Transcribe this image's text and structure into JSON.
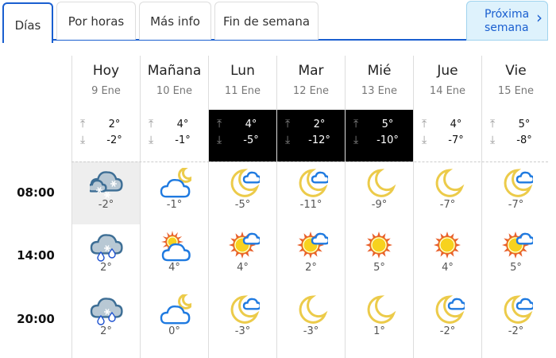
{
  "tabs": [
    {
      "label": "Días",
      "active": true
    },
    {
      "label": "Por horas"
    },
    {
      "label": "Más info"
    },
    {
      "label": "Fin de semana"
    }
  ],
  "next_week": {
    "line1": "Próxima",
    "line2": "semana",
    "icon": "chevron-right-icon"
  },
  "colors": {
    "accent": "#1a5fd0",
    "highlight": "#000000",
    "sun": "#f7d21e",
    "moon": "#eccb4a",
    "cloud": "#1f7ae0"
  },
  "times": [
    "08:00",
    "14:00",
    "20:00"
  ],
  "days": [
    {
      "name": "Hoy",
      "date": "9 Ene",
      "max": "2°",
      "min": "-2°",
      "dark": false,
      "hours": [
        {
          "icon": "snow",
          "t": "-2°",
          "selected": true
        },
        {
          "icon": "sleet",
          "t": "2°"
        },
        {
          "icon": "sleet",
          "t": "2°"
        }
      ]
    },
    {
      "name": "Mañana",
      "date": "10 Ene",
      "max": "4°",
      "min": "-1°",
      "dark": false,
      "hours": [
        {
          "icon": "cloud-moon",
          "t": "-1°"
        },
        {
          "icon": "cloud-sun",
          "t": "4°"
        },
        {
          "icon": "cloud-moon",
          "t": "0°"
        }
      ]
    },
    {
      "name": "Lun",
      "date": "11 Ene",
      "max": "4°",
      "min": "-5°",
      "dark": true,
      "hours": [
        {
          "icon": "moon-cloud",
          "t": "-5°"
        },
        {
          "icon": "sun-cloud",
          "t": "4°"
        },
        {
          "icon": "moon-cloud",
          "t": "-3°"
        }
      ]
    },
    {
      "name": "Mar",
      "date": "12 Ene",
      "max": "2°",
      "min": "-12°",
      "dark": true,
      "hours": [
        {
          "icon": "moon-cloud",
          "t": "-11°"
        },
        {
          "icon": "sun-cloud",
          "t": "2°"
        },
        {
          "icon": "moon",
          "t": "-3°"
        }
      ]
    },
    {
      "name": "Mié",
      "date": "13 Ene",
      "max": "5°",
      "min": "-10°",
      "dark": true,
      "hours": [
        {
          "icon": "moon",
          "t": "-9°"
        },
        {
          "icon": "sun",
          "t": "5°"
        },
        {
          "icon": "moon",
          "t": "1°"
        }
      ]
    },
    {
      "name": "Jue",
      "date": "14 Ene",
      "max": "4°",
      "min": "-7°",
      "dark": false,
      "hours": [
        {
          "icon": "moon",
          "t": "-7°"
        },
        {
          "icon": "sun",
          "t": "4°"
        },
        {
          "icon": "moon-cloud",
          "t": "-2°"
        }
      ]
    },
    {
      "name": "Vie",
      "date": "15 Ene",
      "max": "5°",
      "min": "-8°",
      "dark": false,
      "hours": [
        {
          "icon": "moon-cloud",
          "t": "-7°"
        },
        {
          "icon": "sun-cloud",
          "t": "5°"
        },
        {
          "icon": "moon-cloud",
          "t": "-2°"
        }
      ]
    }
  ]
}
